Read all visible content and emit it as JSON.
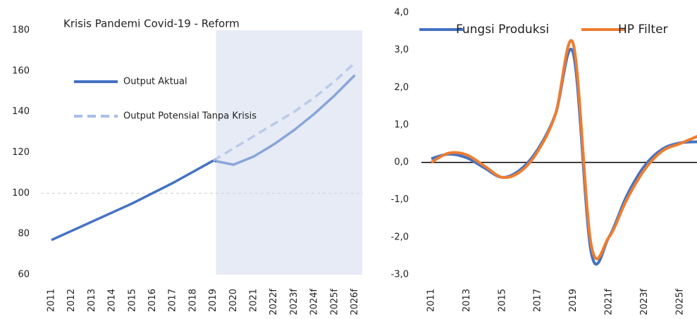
{
  "chart_data": [
    {
      "type": "line",
      "title": "Krisis Pandemi Covid-19 - Reform",
      "categories": [
        "2011",
        "2012",
        "2013",
        "2014",
        "2015",
        "2016",
        "2017",
        "2018",
        "2019",
        "2020",
        "2021",
        "2022f",
        "2023f",
        "2024f",
        "2025f",
        "2026f"
      ],
      "series": [
        {
          "name": "Output Aktual",
          "color": "#4472c4",
          "dash": false,
          "values": [
            77,
            81.5,
            86,
            90.5,
            95,
            100,
            105,
            110.5,
            116,
            114,
            118,
            124,
            131,
            139,
            148,
            158
          ]
        },
        {
          "name": "Output Potensial Tanpa Krisis",
          "color": "#a9bde6",
          "dash": true,
          "values": [
            null,
            null,
            null,
            null,
            null,
            null,
            null,
            null,
            116,
            122,
            128,
            134,
            140,
            147,
            155,
            164
          ]
        }
      ],
      "ylim": [
        60,
        180
      ],
      "yticks": [
        60,
        80,
        100,
        120,
        140,
        160,
        180
      ],
      "hline": 100,
      "shade_from": "2019",
      "legend": "inside-left"
    },
    {
      "type": "line",
      "categories": [
        "2011",
        null,
        "2013",
        null,
        "2015",
        null,
        "2017",
        null,
        "2019",
        null,
        "2021f",
        null,
        "2023f",
        null,
        "2025f",
        null
      ],
      "series": [
        {
          "name": "Fungsi Produksi",
          "color": "#4472c4",
          "dash": false,
          "values": [
            0.1,
            0.22,
            0.12,
            -0.15,
            -0.4,
            -0.2,
            0.35,
            1.3,
            2.9,
            -2.4,
            -2.0,
            -0.9,
            -0.1,
            0.35,
            0.52,
            0.55
          ]
        },
        {
          "name": "HP Filter",
          "color": "#ed7d31",
          "dash": false,
          "values": [
            0.0,
            0.25,
            0.2,
            -0.1,
            -0.4,
            -0.25,
            0.3,
            1.3,
            3.15,
            -2.2,
            -2.0,
            -1.0,
            -0.2,
            0.3,
            0.5,
            0.7
          ]
        }
      ],
      "ylim": [
        -3,
        4
      ],
      "yticks": [
        {
          "value": -3,
          "label": "-3,0"
        },
        {
          "value": -2,
          "label": "-2,0"
        },
        {
          "value": -1,
          "label": "-1,0"
        },
        {
          "value": 0,
          "label": "0,0"
        },
        {
          "value": 1,
          "label": "1,0"
        },
        {
          "value": 2,
          "label": "2,0"
        },
        {
          "value": 3,
          "label": "3,0"
        },
        {
          "value": 4,
          "label": "4,0"
        }
      ],
      "hline": 0,
      "legend": "top"
    }
  ]
}
